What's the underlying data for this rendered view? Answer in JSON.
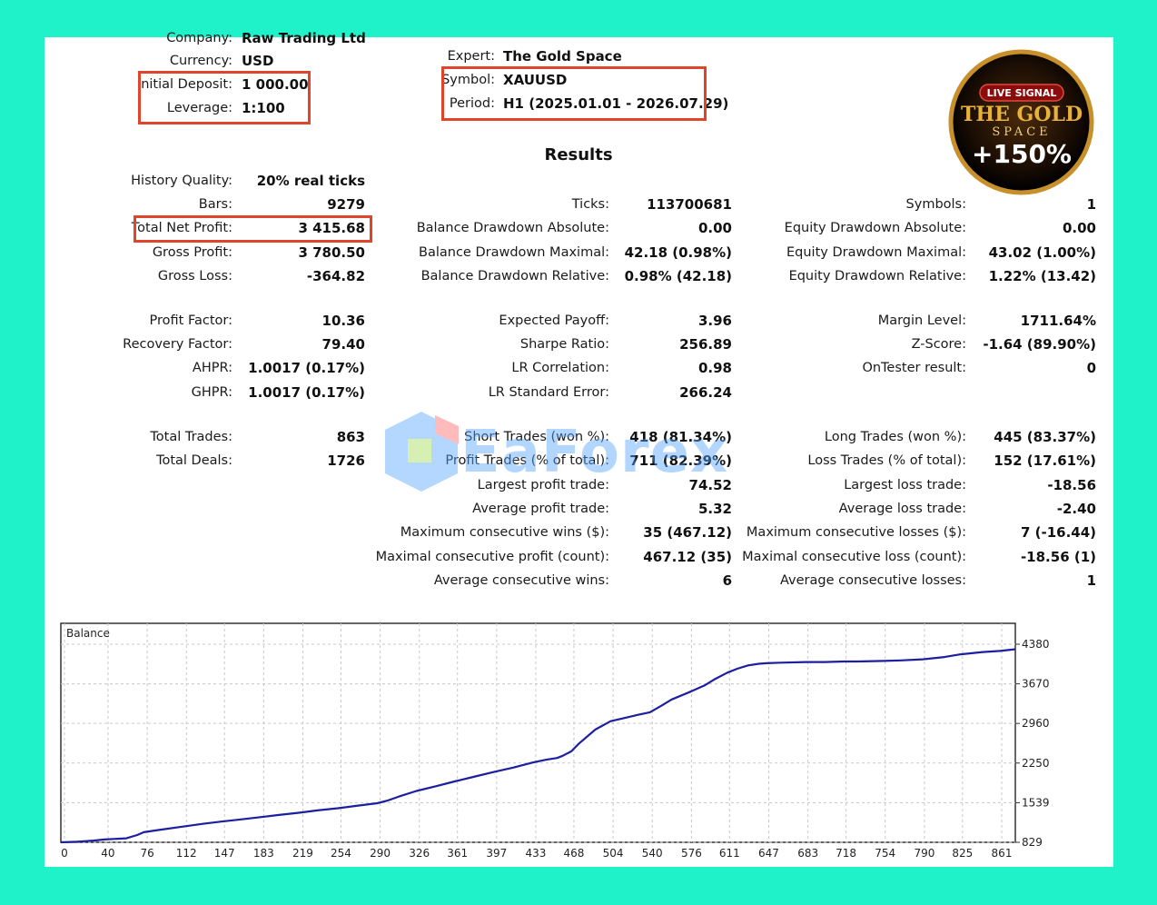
{
  "header": {
    "company_label": "Company:",
    "company_value": "Raw Trading Ltd",
    "currency_label": "Currency:",
    "currency_value": "USD",
    "deposit_label": "Initial Deposit:",
    "deposit_value": "1 000.00",
    "leverage_label": "Leverage:",
    "leverage_value": "1:100",
    "expert_label": "Expert:",
    "expert_value": "The Gold Space",
    "symbol_label": "Symbol:",
    "symbol_value": "XAUUSD",
    "period_label": "Period:",
    "period_value": "H1 (2025.01.01 - 2026.07.29)"
  },
  "badge": {
    "top": "LIVE SIGNAL",
    "line1": "THE GOLD",
    "line2": "SPACE",
    "gain": "+150%"
  },
  "results_title": "Results",
  "col1": {
    "history_quality": {
      "label": "History Quality:",
      "value": "20% real ticks"
    },
    "bars": {
      "label": "Bars:",
      "value": "9279"
    },
    "total_net_profit": {
      "label": "Total Net Profit:",
      "value": "3 415.68"
    },
    "gross_profit": {
      "label": "Gross Profit:",
      "value": "3 780.50"
    },
    "gross_loss": {
      "label": "Gross Loss:",
      "value": "-364.82"
    },
    "profit_factor": {
      "label": "Profit Factor:",
      "value": "10.36"
    },
    "recovery_factor": {
      "label": "Recovery Factor:",
      "value": "79.40"
    },
    "ahpr": {
      "label": "AHPR:",
      "value": "1.0017 (0.17%)"
    },
    "ghpr": {
      "label": "GHPR:",
      "value": "1.0017 (0.17%)"
    },
    "total_trades": {
      "label": "Total Trades:",
      "value": "863"
    },
    "total_deals": {
      "label": "Total Deals:",
      "value": "1726"
    }
  },
  "col2": {
    "ticks": {
      "label": "Ticks:",
      "value": "113700681"
    },
    "bal_dd_abs": {
      "label": "Balance Drawdown Absolute:",
      "value": "0.00"
    },
    "bal_dd_max": {
      "label": "Balance Drawdown Maximal:",
      "value": "42.18 (0.98%)"
    },
    "bal_dd_rel": {
      "label": "Balance Drawdown Relative:",
      "value": "0.98% (42.18)"
    },
    "expected_payoff": {
      "label": "Expected Payoff:",
      "value": "3.96"
    },
    "sharpe": {
      "label": "Sharpe Ratio:",
      "value": "256.89"
    },
    "lr_corr": {
      "label": "LR Correlation:",
      "value": "0.98"
    },
    "lr_std": {
      "label": "LR Standard Error:",
      "value": "266.24"
    },
    "short_trades": {
      "label": "Short Trades (won %):",
      "value": "418 (81.34%)"
    },
    "profit_trades": {
      "label": "Profit Trades (% of total):",
      "value": "711 (82.39%)"
    },
    "largest_profit": {
      "label": "Largest profit trade:",
      "value": "74.52"
    },
    "average_profit": {
      "label": "Average profit trade:",
      "value": "5.32"
    },
    "max_consec_wins": {
      "label": "Maximum consecutive wins ($):",
      "value": "35 (467.12)"
    },
    "maximal_consec_profit": {
      "label": "Maximal consecutive profit (count):",
      "value": "467.12 (35)"
    },
    "avg_consec_wins": {
      "label": "Average consecutive wins:",
      "value": "6"
    }
  },
  "col3": {
    "symbols": {
      "label": "Symbols:",
      "value": "1"
    },
    "eq_dd_abs": {
      "label": "Equity Drawdown Absolute:",
      "value": "0.00"
    },
    "eq_dd_max": {
      "label": "Equity Drawdown Maximal:",
      "value": "43.02 (1.00%)"
    },
    "eq_dd_rel": {
      "label": "Equity Drawdown Relative:",
      "value": "1.22% (13.42)"
    },
    "margin_level": {
      "label": "Margin Level:",
      "value": "1711.64%"
    },
    "z_score": {
      "label": "Z-Score:",
      "value": "-1.64 (89.90%)"
    },
    "ontester": {
      "label": "OnTester result:",
      "value": "0"
    },
    "long_trades": {
      "label": "Long Trades (won %):",
      "value": "445 (83.37%)"
    },
    "loss_trades": {
      "label": "Loss Trades (% of total):",
      "value": "152 (17.61%)"
    },
    "largest_loss": {
      "label": "Largest loss trade:",
      "value": "-18.56"
    },
    "average_loss": {
      "label": "Average loss trade:",
      "value": "-2.40"
    },
    "max_consec_losses": {
      "label": "Maximum consecutive losses ($):",
      "value": "7 (-16.44)"
    },
    "maximal_consec_loss": {
      "label": "Maximal consecutive loss (count):",
      "value": "-18.56 (1)"
    },
    "avg_consec_losses": {
      "label": "Average consecutive losses:",
      "value": "1"
    }
  },
  "watermark": {
    "text": "EaForex"
  },
  "colors": {
    "background": "#1ff2c9",
    "highlight_box": "#e0452a",
    "balance_line": "#1b1fa0",
    "gold": "#e8b23a"
  },
  "chart_data": {
    "type": "line",
    "title": "Balance",
    "x_ticks": [
      "0",
      "40",
      "76",
      "112",
      "147",
      "183",
      "219",
      "254",
      "290",
      "326",
      "361",
      "397",
      "433",
      "468",
      "504",
      "540",
      "576",
      "611",
      "647",
      "683",
      "718",
      "754",
      "790",
      "825",
      "861"
    ],
    "y_ticks": [
      "829",
      "1539",
      "2250",
      "2960",
      "3670",
      "4380"
    ],
    "ylim": [
      829,
      4380
    ],
    "xlim": [
      0,
      875
    ],
    "grid": true,
    "series": [
      {
        "x": [
          0,
          15,
          30,
          40,
          60,
          70,
          76,
          90,
          112,
          130,
          147,
          165,
          183,
          200,
          219,
          235,
          254,
          270,
          290,
          300,
          310,
          326,
          345,
          361,
          380,
          397,
          415,
          433,
          445,
          455,
          460,
          468,
          475,
          490,
          504,
          515,
          530,
          540,
          550,
          560,
          576,
          590,
          600,
          611,
          620,
          630,
          640,
          647,
          660,
          683,
          700,
          718,
          730,
          754,
          770,
          790,
          810,
          825,
          845,
          861,
          875
        ],
        "y": [
          829,
          840,
          860,
          880,
          900,
          960,
          1010,
          1050,
          1110,
          1160,
          1200,
          1240,
          1280,
          1320,
          1360,
          1400,
          1440,
          1480,
          1530,
          1580,
          1650,
          1750,
          1840,
          1920,
          2010,
          2090,
          2170,
          2260,
          2310,
          2340,
          2380,
          2460,
          2600,
          2850,
          3000,
          3050,
          3120,
          3160,
          3270,
          3390,
          3520,
          3640,
          3760,
          3870,
          3940,
          4000,
          4030,
          4040,
          4050,
          4060,
          4060,
          4070,
          4070,
          4080,
          4090,
          4110,
          4150,
          4200,
          4240,
          4260,
          4290
        ]
      }
    ]
  }
}
